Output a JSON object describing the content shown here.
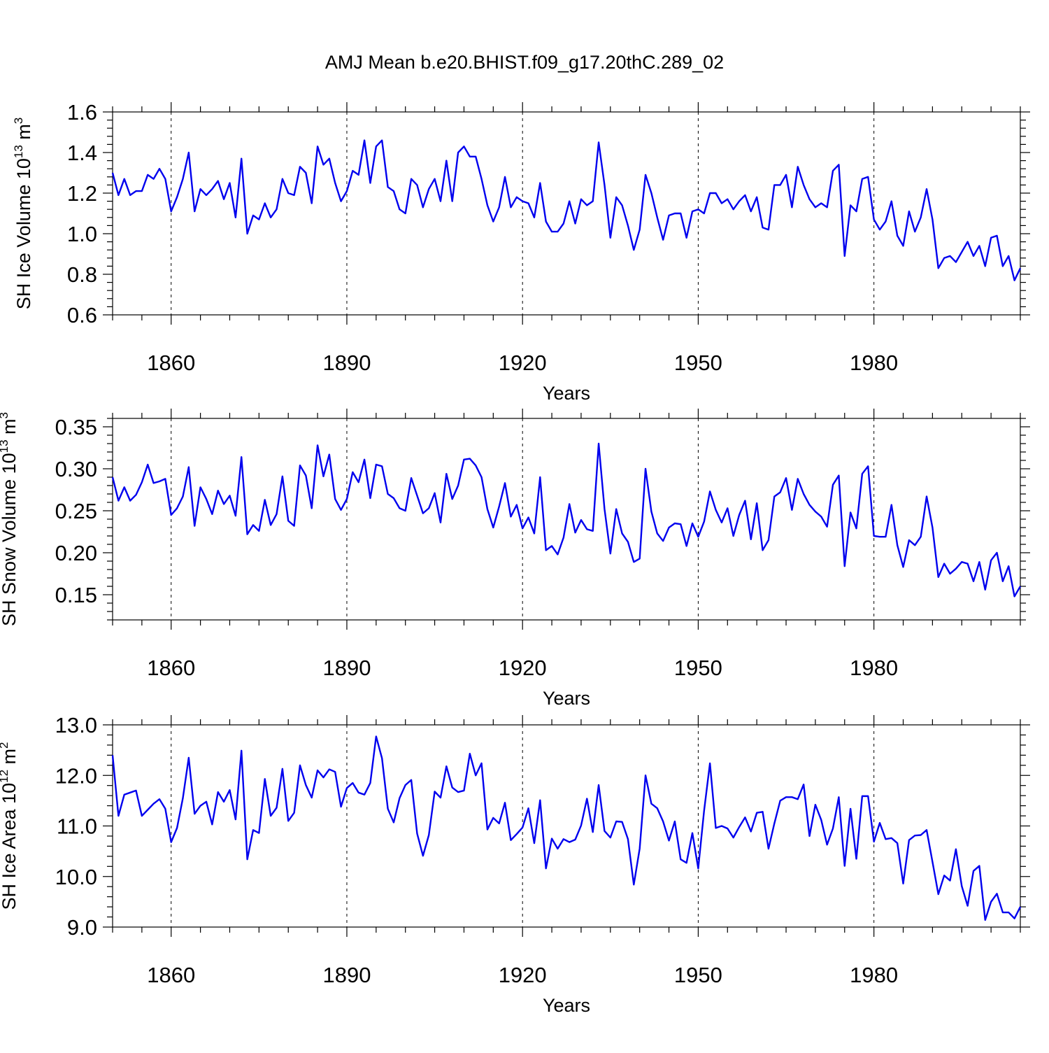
{
  "figure_title": "AMJ Mean b.e20.BHIST.f09_g17.20thC.289_02",
  "line_color": "#0000ee",
  "chart_data": [
    {
      "type": "line",
      "name": "ice-volume",
      "ylabel": "SH Ice Volume 10",
      "ylabel_exp": "13",
      "ylabel_unit": " m",
      "ylabel_unit_exp": "3",
      "xlabel": "Years",
      "xlim": [
        1850,
        2005
      ],
      "ylim": [
        0.6,
        1.6
      ],
      "yticks": [
        0.6,
        0.8,
        1.0,
        1.2,
        1.4,
        1.6
      ],
      "ytick_labels": [
        "0.6",
        "0.8",
        "1.0",
        "1.2",
        "1.4",
        "1.6"
      ],
      "xticks": [
        1860,
        1890,
        1920,
        1950,
        1980
      ],
      "xtick_labels": [
        "1860",
        "1890",
        "1920",
        "1950",
        "1980"
      ],
      "x_start": 1850,
      "values": [
        1.3,
        1.19,
        1.27,
        1.19,
        1.21,
        1.21,
        1.29,
        1.27,
        1.32,
        1.27,
        1.11,
        1.18,
        1.27,
        1.4,
        1.11,
        1.22,
        1.19,
        1.22,
        1.26,
        1.17,
        1.25,
        1.08,
        1.37,
        1.0,
        1.09,
        1.07,
        1.15,
        1.08,
        1.12,
        1.27,
        1.2,
        1.19,
        1.33,
        1.3,
        1.15,
        1.43,
        1.34,
        1.37,
        1.25,
        1.16,
        1.21,
        1.31,
        1.29,
        1.46,
        1.25,
        1.43,
        1.46,
        1.23,
        1.21,
        1.12,
        1.1,
        1.27,
        1.24,
        1.13,
        1.22,
        1.27,
        1.16,
        1.36,
        1.16,
        1.4,
        1.43,
        1.38,
        1.38,
        1.27,
        1.14,
        1.06,
        1.13,
        1.28,
        1.13,
        1.18,
        1.16,
        1.15,
        1.08,
        1.25,
        1.06,
        1.01,
        1.01,
        1.05,
        1.16,
        1.05,
        1.17,
        1.14,
        1.16,
        1.45,
        1.24,
        0.98,
        1.18,
        1.14,
        1.04,
        0.92,
        1.02,
        1.29,
        1.2,
        1.08,
        0.97,
        1.09,
        1.1,
        1.1,
        0.98,
        1.11,
        1.12,
        1.1,
        1.2,
        1.2,
        1.15,
        1.17,
        1.12,
        1.16,
        1.19,
        1.11,
        1.18,
        1.03,
        1.02,
        1.24,
        1.24,
        1.29,
        1.13,
        1.33,
        1.24,
        1.17,
        1.13,
        1.15,
        1.13,
        1.31,
        1.34,
        0.89,
        1.14,
        1.11,
        1.27,
        1.28,
        1.07,
        1.02,
        1.06,
        1.16,
        0.99,
        0.94,
        1.11,
        1.01,
        1.08,
        1.22,
        1.07,
        0.83,
        0.88,
        0.89,
        0.86,
        0.91,
        0.96,
        0.89,
        0.94,
        0.84,
        0.98,
        0.99,
        0.84,
        0.89,
        0.77,
        0.83
      ]
    },
    {
      "type": "line",
      "name": "snow-volume",
      "ylabel": "SH Snow Volume 10",
      "ylabel_exp": "13",
      "ylabel_unit": " m",
      "ylabel_unit_exp": "3",
      "xlabel": "Years",
      "xlim": [
        1850,
        2005
      ],
      "ylim": [
        0.12,
        0.36
      ],
      "yticks": [
        0.15,
        0.2,
        0.25,
        0.3,
        0.35
      ],
      "ytick_labels": [
        "0.15",
        "0.20",
        "0.25",
        "0.30",
        "0.35"
      ],
      "xticks": [
        1860,
        1890,
        1920,
        1950,
        1980
      ],
      "xtick_labels": [
        "1860",
        "1890",
        "1920",
        "1950",
        "1980"
      ],
      "x_start": 1850,
      "values": [
        0.29,
        0.262,
        0.278,
        0.262,
        0.269,
        0.284,
        0.305,
        0.283,
        0.285,
        0.288,
        0.245,
        0.253,
        0.267,
        0.302,
        0.232,
        0.278,
        0.264,
        0.246,
        0.274,
        0.258,
        0.268,
        0.244,
        0.314,
        0.222,
        0.233,
        0.226,
        0.263,
        0.233,
        0.246,
        0.291,
        0.238,
        0.232,
        0.304,
        0.292,
        0.253,
        0.328,
        0.291,
        0.317,
        0.264,
        0.251,
        0.264,
        0.296,
        0.284,
        0.311,
        0.265,
        0.305,
        0.303,
        0.27,
        0.265,
        0.253,
        0.25,
        0.289,
        0.268,
        0.247,
        0.253,
        0.271,
        0.236,
        0.294,
        0.264,
        0.28,
        0.311,
        0.312,
        0.304,
        0.29,
        0.252,
        0.23,
        0.255,
        0.283,
        0.243,
        0.257,
        0.229,
        0.242,
        0.223,
        0.29,
        0.203,
        0.208,
        0.198,
        0.218,
        0.258,
        0.224,
        0.239,
        0.228,
        0.226,
        0.33,
        0.252,
        0.199,
        0.252,
        0.223,
        0.213,
        0.189,
        0.193,
        0.3,
        0.249,
        0.223,
        0.214,
        0.23,
        0.235,
        0.234,
        0.208,
        0.235,
        0.219,
        0.237,
        0.273,
        0.251,
        0.236,
        0.253,
        0.22,
        0.245,
        0.262,
        0.216,
        0.259,
        0.203,
        0.215,
        0.267,
        0.272,
        0.289,
        0.251,
        0.288,
        0.27,
        0.257,
        0.249,
        0.243,
        0.231,
        0.281,
        0.292,
        0.184,
        0.248,
        0.229,
        0.294,
        0.303,
        0.22,
        0.219,
        0.219,
        0.257,
        0.209,
        0.183,
        0.215,
        0.209,
        0.219,
        0.267,
        0.23,
        0.171,
        0.187,
        0.175,
        0.181,
        0.189,
        0.187,
        0.166,
        0.189,
        0.156,
        0.191,
        0.2,
        0.166,
        0.184,
        0.148,
        0.16
      ]
    },
    {
      "type": "line",
      "name": "ice-area",
      "ylabel": "SH Ice Area 10",
      "ylabel_exp": "12",
      "ylabel_unit": " m",
      "ylabel_unit_exp": "2",
      "xlabel": "Years",
      "xlim": [
        1850,
        2005
      ],
      "ylim": [
        9.0,
        13.0
      ],
      "yticks": [
        9.0,
        10.0,
        11.0,
        12.0,
        13.0
      ],
      "ytick_labels": [
        "9.0",
        "10.0",
        "11.0",
        "12.0",
        "13.0"
      ],
      "xticks": [
        1860,
        1890,
        1920,
        1950,
        1980
      ],
      "xtick_labels": [
        "1860",
        "1890",
        "1920",
        "1950",
        "1980"
      ],
      "x_start": 1850,
      "values": [
        12.4,
        11.2,
        11.62,
        11.66,
        11.7,
        11.2,
        11.32,
        11.44,
        11.53,
        11.34,
        10.68,
        10.96,
        11.55,
        12.35,
        11.24,
        11.4,
        11.48,
        11.03,
        11.67,
        11.48,
        11.71,
        11.13,
        12.49,
        10.34,
        10.92,
        10.86,
        11.93,
        11.2,
        11.36,
        12.13,
        11.1,
        11.26,
        12.2,
        11.81,
        11.56,
        12.1,
        11.96,
        12.12,
        12.07,
        11.38,
        11.75,
        11.85,
        11.66,
        11.62,
        11.85,
        12.77,
        12.34,
        11.34,
        11.07,
        11.55,
        11.81,
        11.91,
        10.85,
        10.41,
        10.82,
        11.68,
        11.56,
        12.18,
        11.76,
        11.67,
        11.7,
        12.43,
        12.0,
        12.24,
        10.93,
        11.16,
        11.05,
        11.46,
        10.72,
        10.84,
        10.97,
        11.35,
        10.66,
        11.51,
        10.16,
        10.75,
        10.55,
        10.74,
        10.68,
        10.73,
        11.01,
        11.54,
        10.88,
        11.81,
        10.9,
        10.77,
        11.09,
        11.08,
        10.74,
        9.84,
        10.55,
        12.0,
        11.44,
        11.35,
        11.09,
        10.71,
        11.09,
        10.34,
        10.27,
        10.86,
        10.16,
        11.3,
        12.24,
        10.96,
        11.0,
        10.95,
        10.77,
        10.98,
        11.17,
        10.89,
        11.26,
        11.28,
        10.55,
        11.05,
        11.5,
        11.57,
        11.57,
        11.53,
        11.82,
        10.8,
        11.42,
        11.12,
        10.63,
        10.95,
        11.57,
        10.21,
        11.34,
        10.35,
        11.59,
        11.59,
        10.69,
        11.06,
        10.74,
        10.76,
        10.66,
        9.86,
        10.72,
        10.81,
        10.82,
        10.92,
        10.29,
        9.65,
        10.02,
        9.92,
        10.54,
        9.81,
        9.42,
        10.11,
        10.21,
        9.14,
        9.5,
        9.66,
        9.29,
        9.29,
        9.17,
        9.4
      ]
    }
  ]
}
